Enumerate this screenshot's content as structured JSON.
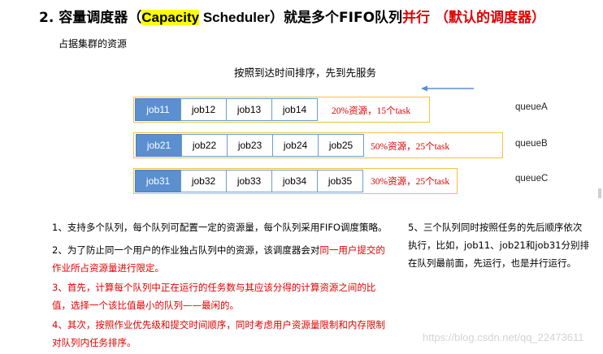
{
  "title": {
    "prefix": "2. 容量调度器（",
    "highlight": "Capacity",
    "english": " Scheduler",
    "middle": "）就是多个FIFO队列",
    "red_part1": "并行",
    "red_part2": "（默认的调度器）"
  },
  "subtitle": "占据集群的资源",
  "order_note": "按照到达时间排序，先到先服务",
  "queues": [
    {
      "jobs": [
        "job11",
        "job12",
        "job13",
        "job14"
      ],
      "info": "20%资源，15个task",
      "label": "queueA"
    },
    {
      "jobs": [
        "job21",
        "job22",
        "job23",
        "job24",
        "job25"
      ],
      "info": "50%资源，25个task",
      "label": "queueB"
    },
    {
      "jobs": [
        "job31",
        "job32",
        "job33",
        "job34",
        "job35"
      ],
      "info": "30%资源，25个task",
      "label": "queueC"
    }
  ],
  "points": {
    "p1": "1、支持多个队列，每个队列可配置一定的资源量，每个队列采用FIFO调度策略。",
    "p2_a": "2、为了防止同一个用户的作业独占队列中的资源，该调度器会对",
    "p2_red": "同一用户提交的作业所占资源量进行限定。",
    "p3": "3、首先，计算每个队列中正在运行的任务数与其应该分得的计算资源之间的比值，选择一个该比值最小的队列——最闲的。",
    "p4": "4、其次，按照作业优先级和提交时间顺序，同时考虑用户资源量限制和内存限制对队列内任务排序。",
    "p5": "5、三个队列同时按照任务的先后顺序依次执行，比如，job11、job21和job31分别排在队列最前面，先运行，也是并行运行。"
  },
  "watermark": "https://blog.csdn.net/qq_22473611",
  "colors": {
    "accent_red": "#e00000",
    "queue_border": "#f2c141",
    "job_border": "#6d9bd0",
    "job_first_bg": "#5b8fcf",
    "arrow": "#5b8fcf"
  }
}
